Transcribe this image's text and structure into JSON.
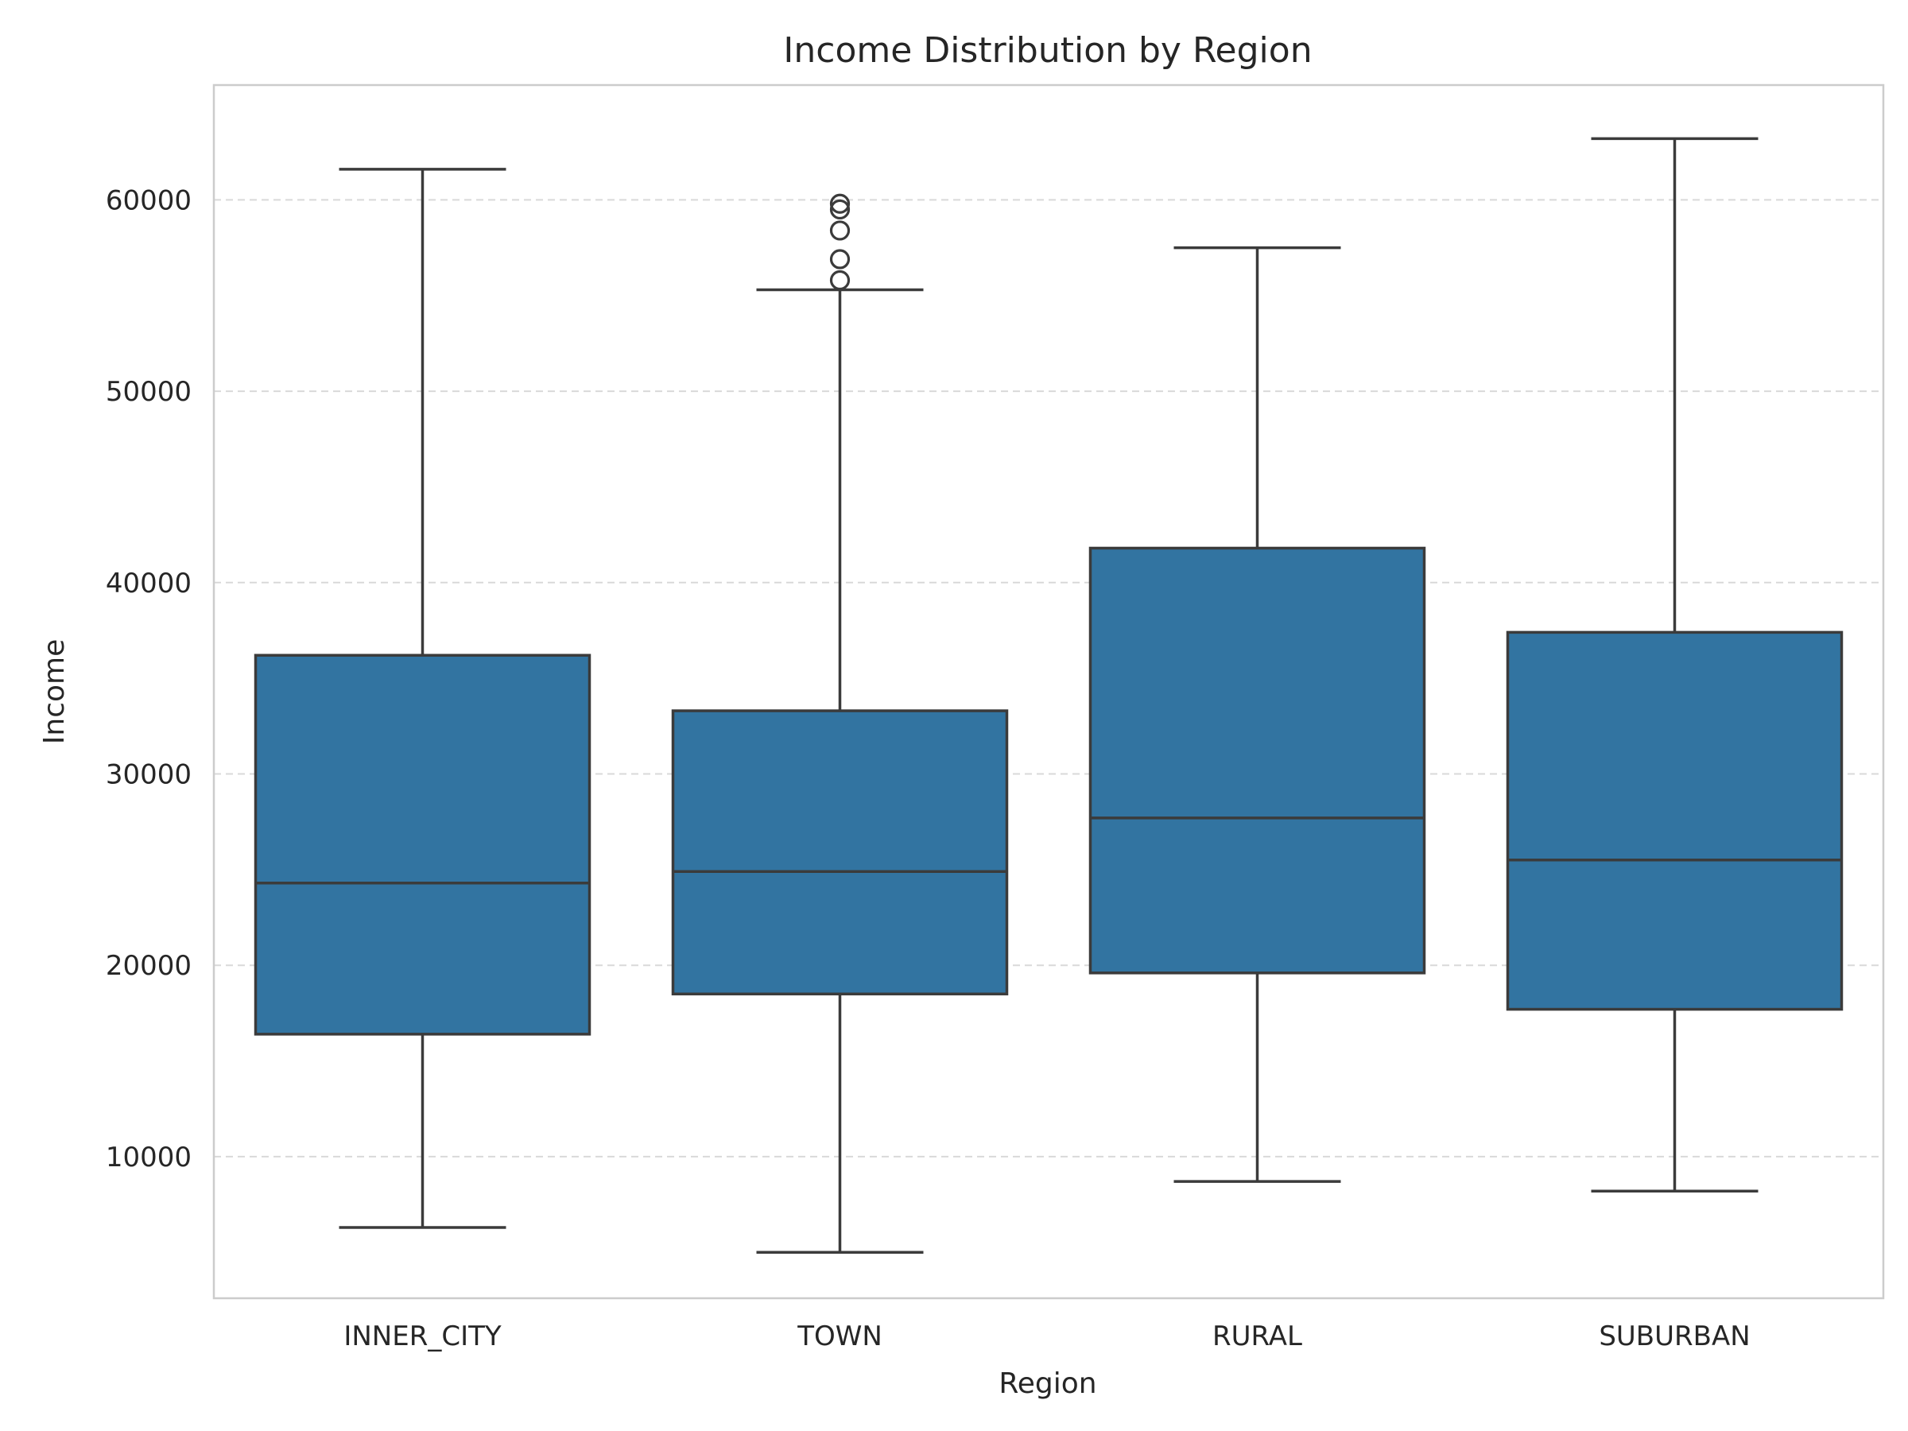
{
  "chart_data": {
    "type": "box",
    "title": "Income Distribution by Region",
    "xlabel": "Region",
    "ylabel": "Income",
    "ylim": [
      2600,
      66000
    ],
    "yticks": [
      10000,
      20000,
      30000,
      40000,
      50000,
      60000
    ],
    "grid": "y-dashed",
    "box_color": "#3274a1",
    "categories": [
      "INNER_CITY",
      "TOWN",
      "RURAL",
      "SUBURBAN"
    ],
    "boxes": [
      {
        "category": "INNER_CITY",
        "whisker_low": 6300,
        "q1": 16400,
        "median": 24300,
        "q3": 36200,
        "whisker_high": 61600,
        "outliers": []
      },
      {
        "category": "TOWN",
        "whisker_low": 5000,
        "q1": 18500,
        "median": 24900,
        "q3": 33300,
        "whisker_high": 55300,
        "outliers": [
          55800,
          56900,
          58400,
          59500,
          59800
        ]
      },
      {
        "category": "RURAL",
        "whisker_low": 8700,
        "q1": 19600,
        "median": 27700,
        "q3": 41800,
        "whisker_high": 57500,
        "outliers": []
      },
      {
        "category": "SUBURBAN",
        "whisker_low": 8200,
        "q1": 17700,
        "median": 25500,
        "q3": 37400,
        "whisker_high": 63200,
        "outliers": []
      }
    ]
  }
}
